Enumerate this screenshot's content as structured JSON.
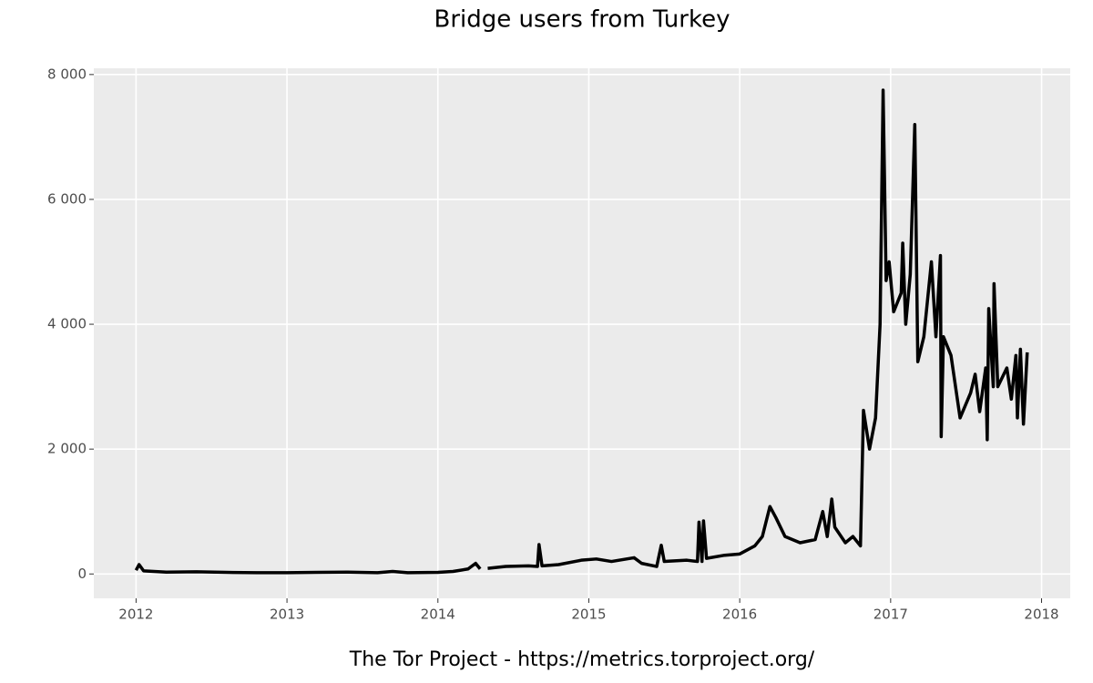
{
  "chart_data": {
    "type": "line",
    "title": "Bridge users from Turkey",
    "caption": "The Tor Project - https://metrics.torproject.org/",
    "x": [
      2012.0,
      2012.02,
      2012.05,
      2012.2,
      2012.4,
      2012.6,
      2012.8,
      2013.0,
      2013.2,
      2013.4,
      2013.6,
      2013.7,
      2013.8,
      2014.0,
      2014.1,
      2014.2,
      2014.25,
      2014.28,
      2014.3,
      2014.33,
      2014.45,
      2014.6,
      2014.66,
      2014.67,
      2014.69,
      2014.8,
      2014.95,
      2015.05,
      2015.15,
      2015.3,
      2015.35,
      2015.45,
      2015.48,
      2015.5,
      2015.65,
      2015.72,
      2015.73,
      2015.75,
      2015.76,
      2015.78,
      2015.9,
      2016.0,
      2016.1,
      2016.15,
      2016.2,
      2016.24,
      2016.3,
      2016.4,
      2016.5,
      2016.55,
      2016.58,
      2016.61,
      2016.63,
      2016.7,
      2016.75,
      2016.8,
      2016.82,
      2016.86,
      2016.9,
      2016.93,
      2016.95,
      2016.97,
      2016.99,
      2017.02,
      2017.07,
      2017.08,
      2017.1,
      2017.13,
      2017.16,
      2017.18,
      2017.22,
      2017.27,
      2017.3,
      2017.33,
      2017.335,
      2017.35,
      2017.4,
      2017.46,
      2017.53,
      2017.56,
      2017.59,
      2017.63,
      2017.64,
      2017.65,
      2017.68,
      2017.685,
      2017.71,
      2017.77,
      2017.8,
      2017.83,
      2017.84,
      2017.86,
      2017.88,
      2017.905
    ],
    "series": [
      {
        "name": "Bridge users",
        "color": "#000000",
        "values": [
          60,
          150,
          50,
          30,
          35,
          25,
          20,
          20,
          25,
          30,
          20,
          40,
          20,
          25,
          40,
          80,
          170,
          80,
          null,
          90,
          120,
          130,
          120,
          470,
          130,
          150,
          220,
          240,
          200,
          260,
          170,
          120,
          460,
          200,
          220,
          200,
          830,
          200,
          850,
          250,
          300,
          320,
          450,
          600,
          1080,
          900,
          600,
          500,
          550,
          1000,
          600,
          1200,
          750,
          500,
          600,
          450,
          2620,
          2000,
          2500,
          4000,
          7750,
          4700,
          5000,
          4200,
          4500,
          5300,
          4000,
          4800,
          7200,
          3400,
          3800,
          5000,
          3800,
          5100,
          2200,
          3800,
          3500,
          2500,
          2900,
          3200,
          2600,
          3300,
          2150,
          4250,
          3000,
          4650,
          3000,
          3300,
          2800,
          3500,
          2500,
          3600,
          2400,
          3550
        ]
      }
    ],
    "xlim": [
      2011.72,
      2018.19
    ],
    "xticks": [
      2012,
      2013,
      2014,
      2015,
      2016,
      2017,
      2018
    ],
    "ylim": [
      -390,
      8100
    ],
    "yticks": [
      0,
      {
        "value": 2000,
        "label": "2 000"
      },
      {
        "value": 4000,
        "label": "4 000"
      },
      {
        "value": 6000,
        "label": "6 000"
      },
      {
        "value": 8000,
        "label": "8 000"
      }
    ],
    "grid": true
  }
}
